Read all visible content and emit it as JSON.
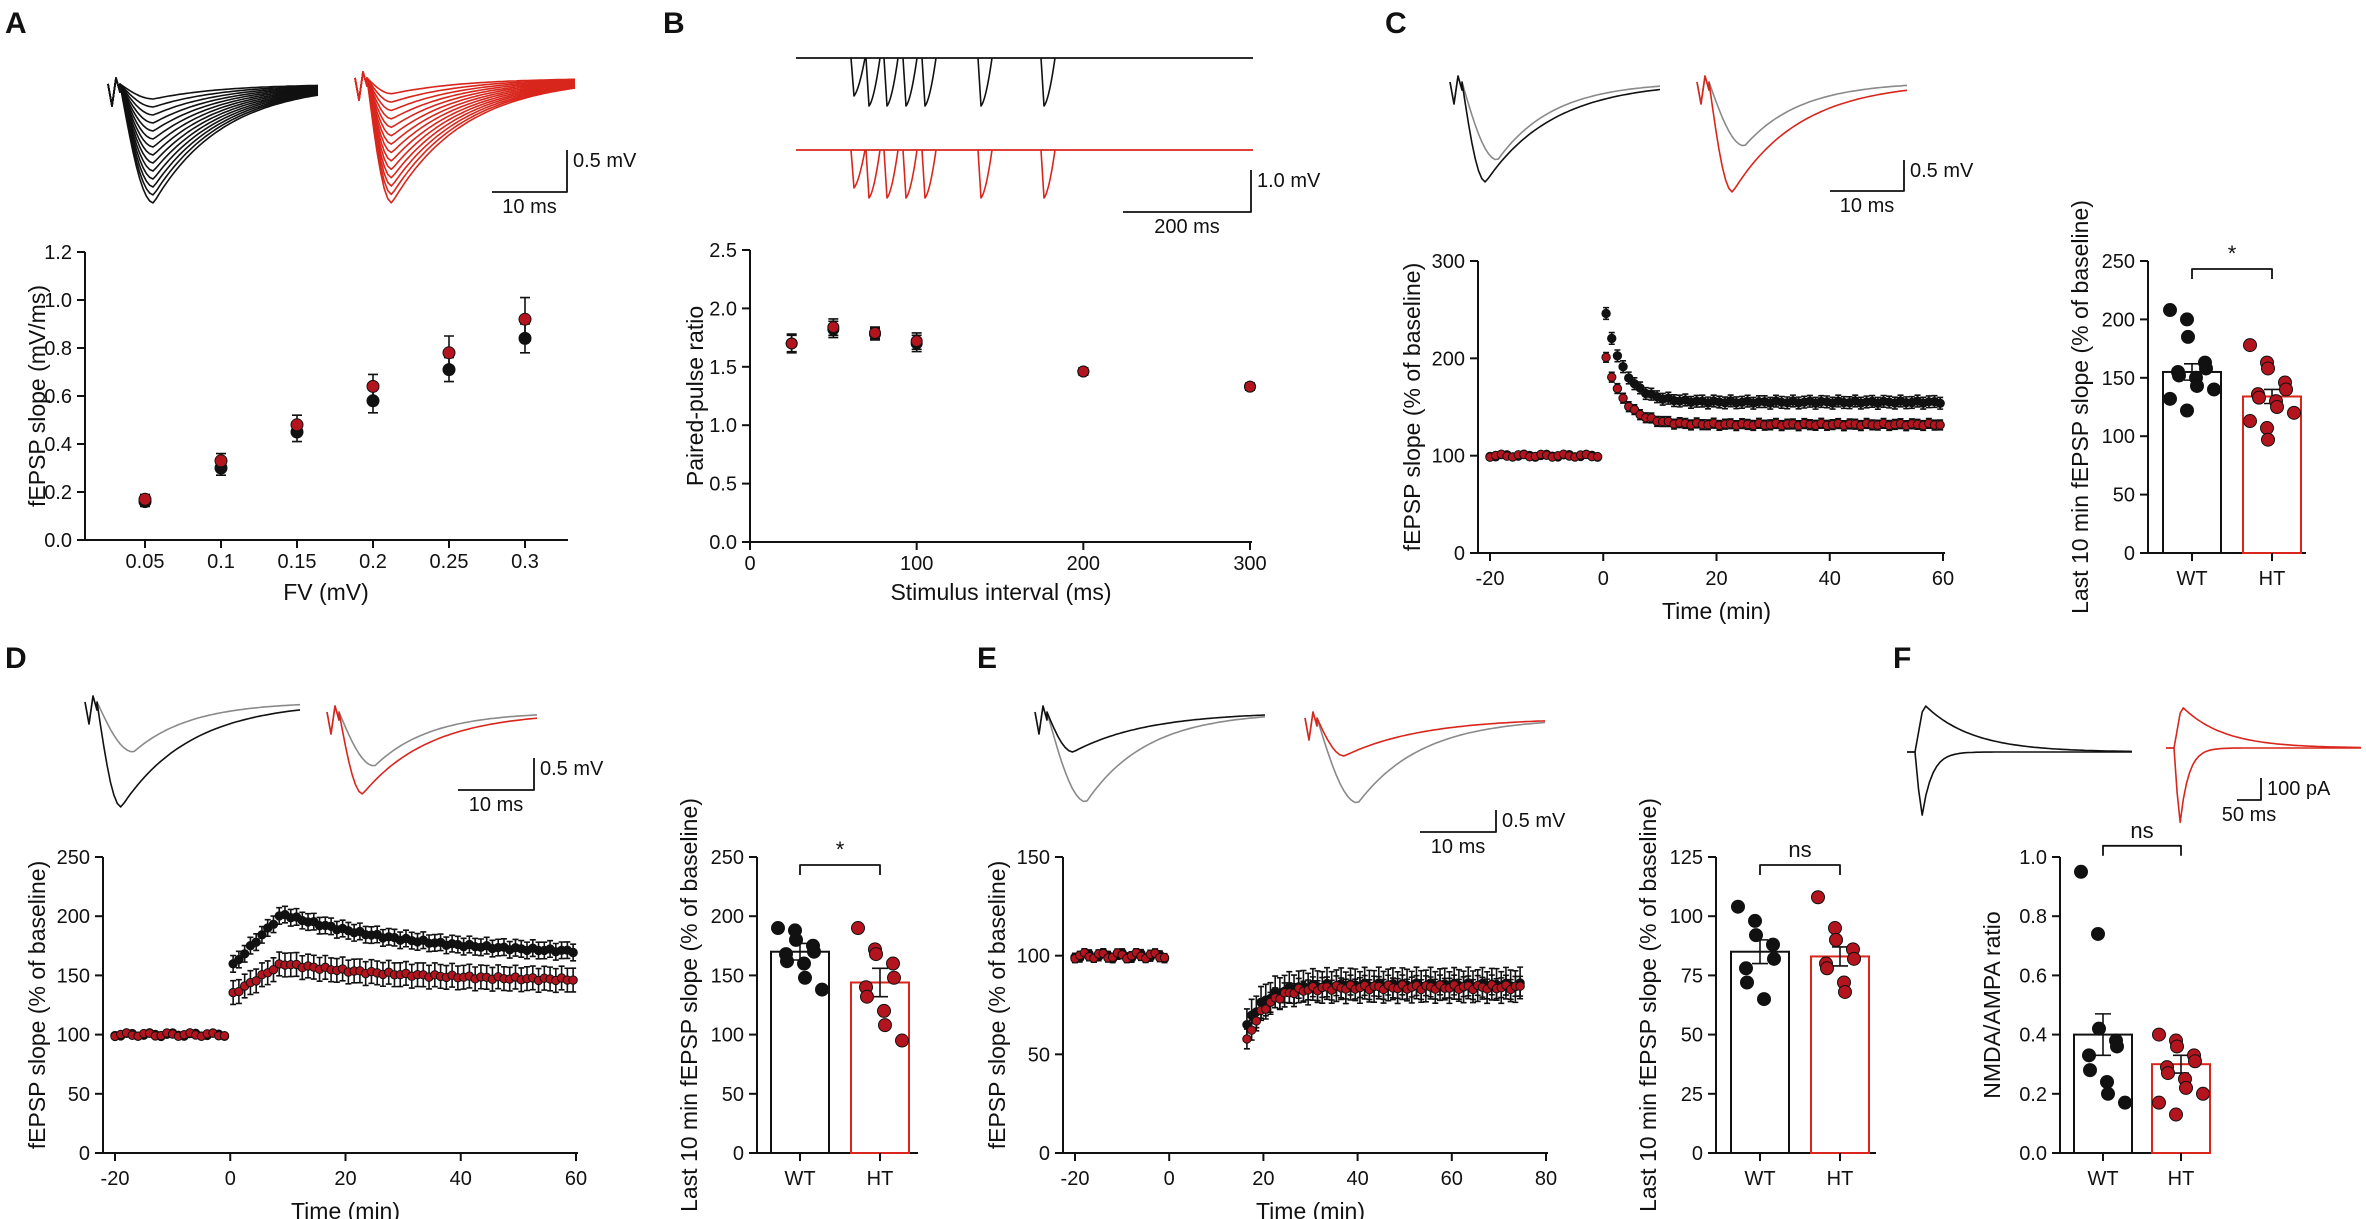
{
  "colors": {
    "wt": "#111111",
    "ht": "#d9261c",
    "ht_point": "#b3141e",
    "gray": "#8a8a8a"
  },
  "panel_labels": {
    "a": "A",
    "b": "B",
    "c": "C",
    "d": "D",
    "e": "E",
    "f": "F"
  },
  "scale_bars": {
    "a_volt": "0.5 mV",
    "a_time": "10 ms",
    "b_volt": "1.0 mV",
    "b_time": "200 ms",
    "c_volt": "0.5 mV",
    "c_time": "10 ms",
    "d_volt": "0.5 mV",
    "d_time": "10 ms",
    "e_volt": "0.5 mV",
    "e_time": "10 ms",
    "f_current": "100 pA",
    "f_time": "50 ms"
  },
  "chart_data": [
    {
      "id": "A",
      "type": "scatter",
      "title": "",
      "xlabel": "FV (mV)",
      "ylabel": "fEPSP slope (mV/ms)",
      "ylim": [
        0,
        1.2
      ],
      "yticks": [
        "0.0",
        "0.2",
        "0.4",
        "0.6",
        "0.8",
        "1.0",
        "1.2"
      ],
      "categories": [
        "0.05",
        "0.1",
        "0.15",
        "0.2",
        "0.25",
        "0.3"
      ],
      "series": [
        {
          "name": "WT",
          "values": [
            0.16,
            0.3,
            0.45,
            0.58,
            0.71,
            0.84
          ],
          "errors": [
            0.02,
            0.03,
            0.04,
            0.05,
            0.05,
            0.06
          ]
        },
        {
          "name": "HT",
          "values": [
            0.17,
            0.33,
            0.48,
            0.64,
            0.78,
            0.92
          ],
          "errors": [
            0.02,
            0.03,
            0.04,
            0.05,
            0.07,
            0.09
          ]
        }
      ]
    },
    {
      "id": "B",
      "type": "scatter",
      "title": "",
      "xlabel": "Stimulus interval (ms)",
      "ylabel": "Paired-pulse ratio",
      "xlim": [
        0,
        300
      ],
      "ylim": [
        0,
        2.5
      ],
      "xticks": [
        "0",
        "100",
        "200",
        "300"
      ],
      "yticks": [
        "0.0",
        "0.5",
        "1.0",
        "1.5",
        "2.0",
        "2.5"
      ],
      "x": [
        25,
        50,
        75,
        100,
        200,
        300
      ],
      "series": [
        {
          "name": "WT",
          "values": [
            1.7,
            1.82,
            1.78,
            1.7,
            1.46,
            1.33
          ],
          "errors": [
            0.07,
            0.07,
            0.05,
            0.07,
            0.03,
            0.03
          ]
        },
        {
          "name": "HT",
          "values": [
            1.7,
            1.84,
            1.79,
            1.72,
            1.46,
            1.33
          ],
          "errors": [
            0.08,
            0.07,
            0.05,
            0.07,
            0.03,
            0.03
          ]
        }
      ]
    },
    {
      "id": "C-time",
      "type": "scatter",
      "xlabel": "Time (min)",
      "ylabel": "fEPSP slope (% of baseline)",
      "xlim": [
        -20,
        60
      ],
      "ylim": [
        0,
        300
      ],
      "xticks": [
        "-20",
        "0",
        "20",
        "40",
        "60"
      ],
      "yticks": [
        "0",
        "100",
        "200",
        "300"
      ],
      "series": [
        {
          "name": "WT",
          "baseline": 100,
          "peak": 245,
          "plateau": 155,
          "err": 6
        },
        {
          "name": "HT",
          "baseline": 100,
          "peak": 200,
          "plateau": 132,
          "err": 5
        }
      ]
    },
    {
      "id": "C-bar",
      "type": "bar",
      "ylabel": "Last 10 min fEPSP slope (% of baseline)",
      "ylim": [
        0,
        250
      ],
      "yticks": [
        "0",
        "50",
        "100",
        "150",
        "200",
        "250"
      ],
      "categories": [
        "WT",
        "HT"
      ],
      "values": [
        155,
        134
      ],
      "errors": [
        7,
        6
      ],
      "significance": "*",
      "points": [
        [
          208,
          200,
          185,
          163,
          158,
          155,
          152,
          150,
          143,
          140,
          132,
          122
        ],
        [
          178,
          163,
          158,
          146,
          140,
          136,
          133,
          130,
          125,
          120,
          113,
          107,
          97
        ]
      ]
    },
    {
      "id": "D-time",
      "type": "scatter",
      "xlabel": "Time (min)",
      "ylabel": "fEPSP slope (% of baseline)",
      "xlim": [
        -20,
        60
      ],
      "ylim": [
        0,
        250
      ],
      "xticks": [
        "-20",
        "0",
        "20",
        "40",
        "60"
      ],
      "yticks": [
        "0",
        "50",
        "100",
        "150",
        "200",
        "250"
      ],
      "series": [
        {
          "name": "WT",
          "baseline": 100,
          "peak": 202,
          "plateau": 167,
          "err": 7
        },
        {
          "name": "HT",
          "baseline": 100,
          "peak": 160,
          "plateau": 145,
          "err": 10
        }
      ]
    },
    {
      "id": "D-bar",
      "type": "bar",
      "ylabel": "Last 10 min fEPSP slope (% of baseline)",
      "ylim": [
        0,
        250
      ],
      "yticks": [
        "0",
        "50",
        "100",
        "150",
        "200",
        "250"
      ],
      "categories": [
        "WT",
        "HT"
      ],
      "values": [
        170,
        144
      ],
      "errors": [
        7,
        12
      ],
      "significance": "*",
      "points": [
        [
          190,
          188,
          180,
          175,
          170,
          168,
          162,
          160,
          148,
          138
        ],
        [
          190,
          172,
          168,
          160,
          148,
          140,
          132,
          120,
          108,
          95
        ]
      ]
    },
    {
      "id": "E-time",
      "type": "scatter",
      "xlabel": "Time (min)",
      "ylabel": "fEPSP slope (% of baseline)",
      "xlim": [
        -20,
        80
      ],
      "ylim": [
        0,
        150
      ],
      "xticks": [
        "-20",
        "0",
        "20",
        "40",
        "60",
        "80"
      ],
      "yticks": [
        "0",
        "50",
        "100",
        "150"
      ],
      "series": [
        {
          "name": "WT",
          "baseline": 100,
          "drop": 62,
          "plateau": 85,
          "err": 8
        },
        {
          "name": "HT",
          "baseline": 100,
          "drop": 53,
          "plateau": 84,
          "err": 5
        }
      ]
    },
    {
      "id": "E-bar",
      "type": "bar",
      "ylabel": "Last 10 min fEPSP slope (% of baseline)",
      "ylim": [
        0,
        125
      ],
      "yticks": [
        "0",
        "25",
        "50",
        "75",
        "100",
        "125"
      ],
      "categories": [
        "WT",
        "HT"
      ],
      "values": [
        85,
        83
      ],
      "errors": [
        5,
        4
      ],
      "significance": "ns",
      "points": [
        [
          104,
          98,
          92,
          88,
          82,
          78,
          72,
          65
        ],
        [
          108,
          95,
          90,
          86,
          82,
          80,
          78,
          72,
          68
        ]
      ]
    },
    {
      "id": "F-bar",
      "type": "bar",
      "ylabel": "NMDA/AMPA ratio",
      "ylim": [
        0,
        1.0
      ],
      "yticks": [
        "0.0",
        "0.2",
        "0.4",
        "0.6",
        "0.8",
        "1.0"
      ],
      "categories": [
        "WT",
        "HT"
      ],
      "values": [
        0.4,
        0.3
      ],
      "errors": [
        0.07,
        0.03
      ],
      "significance": "ns",
      "points": [
        [
          0.95,
          0.74,
          0.42,
          0.38,
          0.36,
          0.33,
          0.28,
          0.24,
          0.2,
          0.17
        ],
        [
          0.4,
          0.38,
          0.36,
          0.33,
          0.31,
          0.29,
          0.27,
          0.25,
          0.22,
          0.2,
          0.17,
          0.13
        ]
      ]
    }
  ]
}
